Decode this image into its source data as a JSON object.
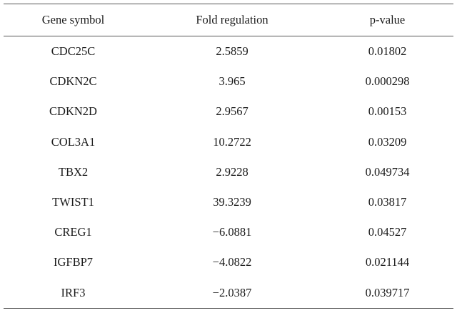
{
  "table": {
    "headers": [
      "Gene symbol",
      "Fold regulation",
      "p-value"
    ],
    "rows": [
      [
        "CDC25C",
        "2.5859",
        "0.01802"
      ],
      [
        "CDKN2C",
        "3.965",
        "0.000298"
      ],
      [
        "CDKN2D",
        "2.9567",
        "0.00153"
      ],
      [
        "COL3A1",
        "10.2722",
        "0.03209"
      ],
      [
        "TBX2",
        "2.9228",
        "0.049734"
      ],
      [
        "TWIST1",
        "39.3239",
        "0.03817"
      ],
      [
        "CREG1",
        "−6.0881",
        "0.04527"
      ],
      [
        "IGFBP7",
        "−4.0822",
        "0.021144"
      ],
      [
        "IRF3",
        "−2.0387",
        "0.039717"
      ]
    ]
  }
}
